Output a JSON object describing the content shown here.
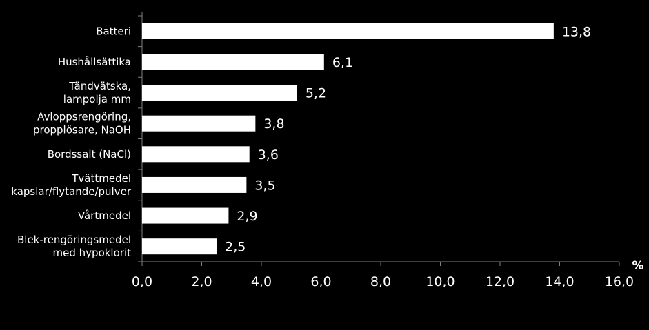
{
  "chart_data": {
    "type": "bar",
    "orientation": "horizontal",
    "categories": [
      [
        "Batteri"
      ],
      [
        "Hushållsättika"
      ],
      [
        "Tändvätska,",
        "lampolja mm"
      ],
      [
        "Avloppsrengöring,",
        "propplösare, NaOH"
      ],
      [
        "Bordssalt (NaCl)"
      ],
      [
        "Tvättmedel",
        "kapslar/flytande/pulver"
      ],
      [
        "Vårtmedel"
      ],
      [
        "Blek-rengöringsmedel",
        "med hypoklorit"
      ]
    ],
    "values": [
      13.8,
      6.1,
      5.2,
      3.8,
      3.6,
      3.5,
      2.9,
      2.5
    ],
    "value_labels": [
      "13,8",
      "6,1",
      "5,2",
      "3,8",
      "3,6",
      "3,5",
      "2,9",
      "2,5"
    ],
    "xlim": [
      0,
      16
    ],
    "xticks": [
      0,
      2,
      4,
      6,
      8,
      10,
      12,
      14,
      16
    ],
    "xtick_labels": [
      "0,0",
      "2,0",
      "4,0",
      "6,0",
      "8,0",
      "10,0",
      "12,0",
      "14,0",
      "16,0"
    ],
    "unit_label": "%",
    "title": "",
    "xlabel": "",
    "ylabel": "",
    "grid": false,
    "colors": {
      "background": "#000000",
      "bar": "#ffffff",
      "axis": "#808080",
      "text": "#ffffff"
    }
  }
}
